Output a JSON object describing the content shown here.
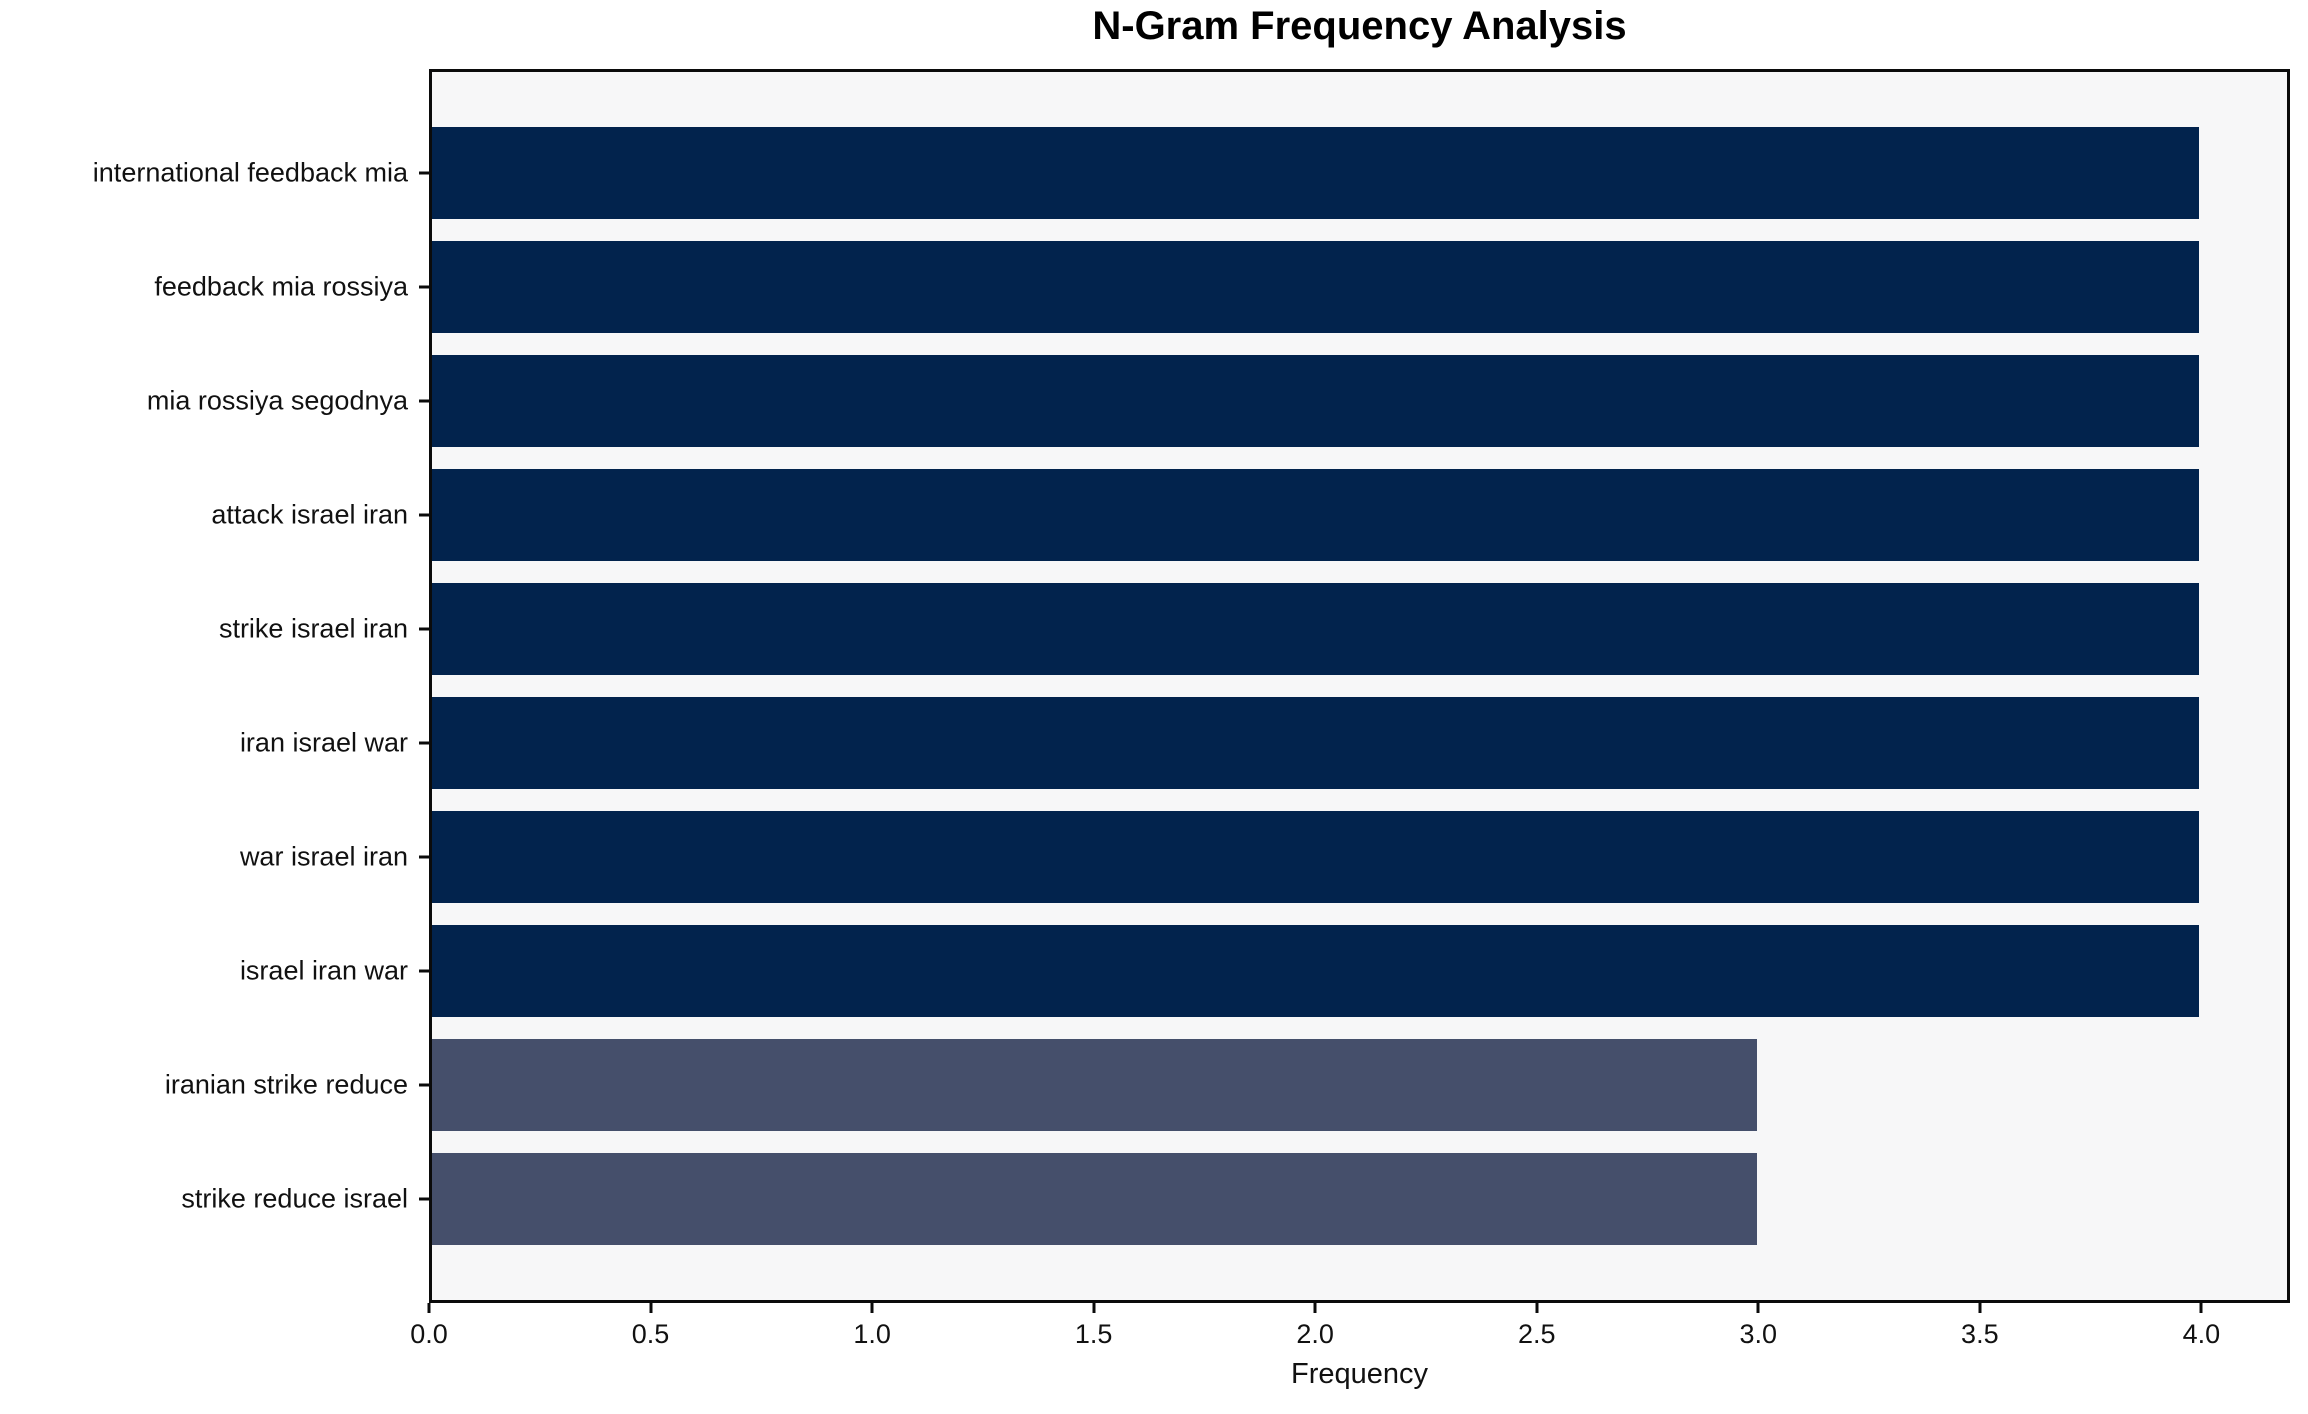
{
  "title": "N-Gram Frequency Analysis",
  "chart_data": {
    "type": "bar",
    "orientation": "horizontal",
    "title": "N-Gram Frequency Analysis",
    "categories": [
      "international feedback mia",
      "feedback mia rossiya",
      "mia rossiya segodnya",
      "attack israel iran",
      "strike israel iran",
      "iran israel war",
      "war israel iran",
      "israel iran war",
      "iranian strike reduce",
      "strike reduce israel"
    ],
    "values": [
      4,
      4,
      4,
      4,
      4,
      4,
      4,
      4,
      3,
      3
    ],
    "bar_colors": [
      "#02234d",
      "#02234d",
      "#02234d",
      "#02234d",
      "#02234d",
      "#02234d",
      "#02234d",
      "#02234d",
      "#454f6b",
      "#454f6b"
    ],
    "xlabel": "Frequency",
    "ylabel": "",
    "xlim": [
      0,
      4.2
    ],
    "xtick_labels": [
      "0.0",
      "0.5",
      "1.0",
      "1.5",
      "2.0",
      "2.5",
      "3.0",
      "3.5",
      "4.0"
    ],
    "xtick_values": [
      0,
      0.5,
      1,
      1.5,
      2,
      2.5,
      3,
      3.5,
      4
    ],
    "grid": false,
    "legend": null,
    "plot_background": "#f7f7f8",
    "spine_color": "#0b0b0b",
    "text_color": "#111111"
  }
}
